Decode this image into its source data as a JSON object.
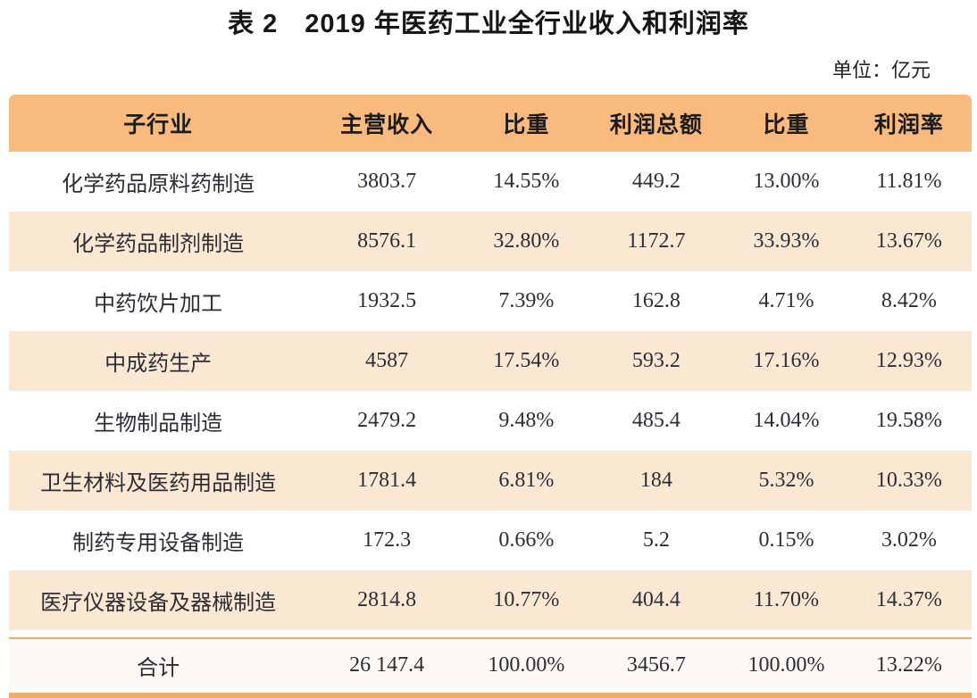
{
  "title": "表 2　2019 年医药工业全行业收入和利润率",
  "unit_label": "单位：亿元",
  "table": {
    "columns": [
      "子行业",
      "主营收入",
      "比重",
      "利润总额",
      "比重",
      "利润率"
    ],
    "rows": [
      [
        "化学药品原料药制造",
        "3803.7",
        "14.55%",
        "449.2",
        "13.00%",
        "11.81%"
      ],
      [
        "化学药品制剂制造",
        "8576.1",
        "32.80%",
        "1172.7",
        "33.93%",
        "13.67%"
      ],
      [
        "中药饮片加工",
        "1932.5",
        "7.39%",
        "162.8",
        "4.71%",
        "8.42%"
      ],
      [
        "中成药生产",
        "4587",
        "17.54%",
        "593.2",
        "17.16%",
        "12.93%"
      ],
      [
        "生物制品制造",
        "2479.2",
        "9.48%",
        "485.4",
        "14.04%",
        "19.58%"
      ],
      [
        "卫生材料及医药用品制造",
        "1781.4",
        "6.81%",
        "184",
        "5.32%",
        "10.33%"
      ],
      [
        "制药专用设备制造",
        "172.3",
        "0.66%",
        "5.2",
        "0.15%",
        "3.02%"
      ],
      [
        "医疗仪器设备及器械制造",
        "2814.8",
        "10.77%",
        "404.4",
        "11.70%",
        "14.37%"
      ]
    ],
    "total_row": [
      "合计",
      "26 147.4",
      "100.00%",
      "3456.7",
      "100.00%",
      "13.22%"
    ]
  },
  "colors": {
    "header_bg": "#F8BB7D",
    "stripe_bg": "#FBE8D3",
    "total_bg": "#FDFAF5",
    "accent_bar": "#EFAE65",
    "separator_line": "#E9AC60",
    "text": "#2D2D36"
  }
}
